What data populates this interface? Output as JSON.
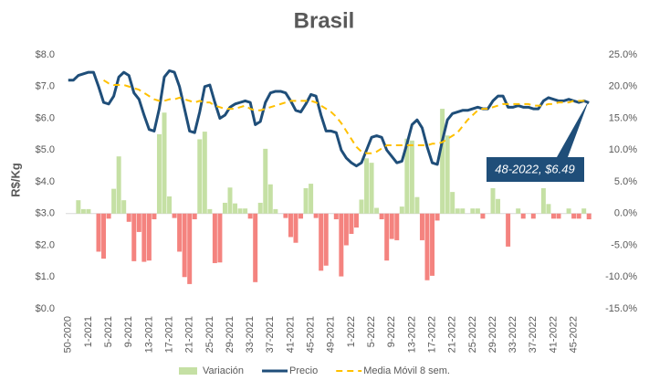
{
  "chart_data": {
    "type": "combo",
    "title": "Brasil",
    "y_label": "R$/Kg",
    "annotation": "48-2022,  $6.49",
    "categories": [
      "50-2020",
      null,
      null,
      null,
      "1-2021",
      null,
      null,
      null,
      "5-2021",
      null,
      null,
      null,
      "9-2021",
      null,
      null,
      null,
      "13-2021",
      null,
      null,
      null,
      "17-2021",
      null,
      null,
      null,
      "21-2021",
      null,
      null,
      null,
      "25-2021",
      null,
      null,
      null,
      "29-2021",
      null,
      null,
      null,
      "33-2021",
      null,
      null,
      null,
      "37-2021",
      null,
      null,
      null,
      "41-2021",
      null,
      null,
      null,
      "45-2021",
      null,
      null,
      null,
      "49-2021",
      null,
      null,
      null,
      "1-2022",
      null,
      null,
      null,
      "5-2022",
      null,
      null,
      null,
      "9-2022",
      null,
      null,
      null,
      "13-2022",
      null,
      null,
      null,
      "17-2022",
      null,
      null,
      null,
      "21-2022",
      null,
      null,
      null,
      "25-2022",
      null,
      null,
      null,
      "29-2022",
      null,
      null,
      null,
      "33-2022",
      null,
      null,
      null,
      "37-2022",
      null,
      null,
      null,
      "41-2022",
      null,
      null,
      null,
      "45-2022",
      null,
      null,
      null
    ],
    "series": [
      {
        "name": "Variación",
        "kind": "bar",
        "axis": "y2",
        "color": "#c5e0a4",
        "negative_color": "#f4837f",
        "values": [
          null,
          0,
          2.1,
          0.7,
          0.7,
          0,
          -6.0,
          -7.1,
          -0.8,
          3.9,
          9.0,
          2.1,
          -1.3,
          -7.5,
          -2.9,
          -7.6,
          -7.4,
          -0.9,
          12.5,
          15.9,
          2.7,
          -0.7,
          -6.0,
          -10.0,
          -11.1,
          -0.9,
          11.7,
          12.9,
          0.7,
          -7.8,
          -7.7,
          1.7,
          4.1,
          1.6,
          0.8,
          0.8,
          -0.8,
          -10.8,
          1.7,
          10.2,
          4.6,
          0.7,
          0,
          -0.7,
          -3.7,
          -4.6,
          -0.8,
          4.0,
          4.7,
          -0.7,
          -9.0,
          -8.2,
          0,
          -0.9,
          -9.9,
          -5.0,
          -3.2,
          -2.2,
          2.2,
          8.7,
          8.0,
          0.9,
          -0.9,
          -7.4,
          -4.0,
          -4.2,
          1.1,
          11.8,
          11.5,
          2.6,
          -4.2,
          -10.5,
          -9.8,
          -1.1,
          16.5,
          12.3,
          3.4,
          0.8,
          0.8,
          0,
          0.8,
          0.8,
          -0.8,
          0,
          4.0,
          2.3,
          0,
          -5.2,
          0,
          0.8,
          -0.8,
          0,
          -0.8,
          0,
          4.0,
          1.5,
          -0.8,
          -0.8,
          0,
          0.8,
          -0.8,
          -0.8,
          0.8,
          -0.9
        ]
      },
      {
        "name": "Precio",
        "kind": "line",
        "color": "#1f4e79",
        "values": [
          7.2,
          7.2,
          7.35,
          7.4,
          7.45,
          7.45,
          7.0,
          6.5,
          6.45,
          6.7,
          7.3,
          7.45,
          7.35,
          6.8,
          6.6,
          6.1,
          5.65,
          5.6,
          6.3,
          7.3,
          7.5,
          7.45,
          7.0,
          6.3,
          5.6,
          5.55,
          6.2,
          7.0,
          7.05,
          6.5,
          6.0,
          6.1,
          6.35,
          6.45,
          6.5,
          6.55,
          6.5,
          5.8,
          5.9,
          6.5,
          6.8,
          6.85,
          6.85,
          6.8,
          6.55,
          6.25,
          6.2,
          6.45,
          6.75,
          6.7,
          6.1,
          5.6,
          5.6,
          5.55,
          5.0,
          4.75,
          4.6,
          4.5,
          4.6,
          5.0,
          5.4,
          5.45,
          5.4,
          5.0,
          4.8,
          4.6,
          4.65,
          5.2,
          5.8,
          5.95,
          5.7,
          5.1,
          4.6,
          4.55,
          5.3,
          5.95,
          6.15,
          6.2,
          6.25,
          6.25,
          6.3,
          6.35,
          6.3,
          6.3,
          6.55,
          6.7,
          6.7,
          6.35,
          6.35,
          6.4,
          6.35,
          6.35,
          6.3,
          6.3,
          6.55,
          6.65,
          6.6,
          6.55,
          6.55,
          6.6,
          6.55,
          6.5,
          6.55,
          6.49
        ]
      },
      {
        "name": "Media Móvil 8 sem.",
        "kind": "dashed",
        "color": "#ffc000",
        "values": [
          null,
          null,
          null,
          null,
          null,
          null,
          null,
          7.2,
          7.1,
          7.05,
          7.05,
          7.05,
          7.0,
          6.95,
          6.9,
          6.8,
          6.7,
          6.6,
          6.55,
          6.55,
          6.6,
          6.6,
          6.65,
          6.6,
          6.55,
          6.5,
          6.55,
          6.5,
          6.5,
          6.4,
          6.35,
          6.3,
          6.3,
          6.3,
          6.35,
          6.4,
          6.3,
          6.25,
          6.25,
          6.3,
          6.35,
          6.4,
          6.45,
          6.5,
          6.55,
          6.55,
          6.55,
          6.55,
          6.55,
          6.5,
          6.4,
          6.3,
          6.2,
          6.05,
          5.85,
          5.6,
          5.35,
          5.1,
          4.95,
          4.9,
          4.9,
          4.95,
          5.05,
          5.15,
          5.15,
          5.15,
          5.15,
          5.15,
          5.15,
          5.15,
          5.15,
          5.15,
          5.2,
          5.2,
          5.25,
          5.35,
          5.45,
          5.55,
          5.75,
          5.95,
          6.1,
          6.25,
          6.3,
          6.3,
          6.35,
          6.4,
          6.45,
          6.45,
          6.45,
          6.45,
          6.45,
          6.45,
          6.4,
          6.4,
          6.4,
          6.45,
          6.45,
          6.5,
          6.5,
          6.5,
          6.55,
          6.55,
          6.55,
          6.55
        ]
      }
    ],
    "ylim": [
      0,
      8
    ],
    "yticks": [
      {
        "value": 0,
        "label": "$0.0"
      },
      {
        "value": 1,
        "label": "$1.0"
      },
      {
        "value": 2,
        "label": "$2.0"
      },
      {
        "value": 3,
        "label": "$3.0"
      },
      {
        "value": 4,
        "label": "$4.0"
      },
      {
        "value": 5,
        "label": "$5.0"
      },
      {
        "value": 6,
        "label": "$6.0"
      },
      {
        "value": 7,
        "label": "$7.0"
      },
      {
        "value": 8,
        "label": "$8.0"
      }
    ],
    "y2lim": [
      -15,
      25
    ],
    "y2ticks": [
      {
        "value": -15,
        "label": "-15.0%"
      },
      {
        "value": -10,
        "label": "-10.0%"
      },
      {
        "value": -5,
        "label": "-5.0%"
      },
      {
        "value": 0,
        "label": "0.0%"
      },
      {
        "value": 5,
        "label": "5.0%"
      },
      {
        "value": 10,
        "label": "10.0%"
      },
      {
        "value": 15,
        "label": "15.0%"
      },
      {
        "value": 20,
        "label": "20.0%"
      },
      {
        "value": 25,
        "label": "25.0%"
      }
    ],
    "grid": false,
    "legend": "bottom"
  }
}
